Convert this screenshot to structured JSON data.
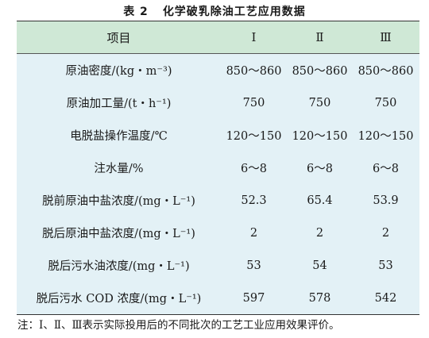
{
  "caption": {
    "number": "表 2",
    "title": "化学破乳除油工艺应用数据"
  },
  "table": {
    "headers": [
      "项目",
      "Ⅰ",
      "Ⅱ",
      "Ⅲ"
    ],
    "rows": [
      [
        "原油密度/(kg・m⁻³)",
        "850～860",
        "850～860",
        "850～860"
      ],
      [
        "原油加工量/(t・h⁻¹)",
        "750",
        "750",
        "750"
      ],
      [
        "电脱盐操作温度/℃",
        "120～150",
        "120～150",
        "120～150"
      ],
      [
        "注水量/%",
        "6～8",
        "6～8",
        "6～8"
      ],
      [
        "脱前原油中盐浓度/(mg・L⁻¹)",
        "52.3",
        "65.4",
        "53.9"
      ],
      [
        "脱后原油中盐浓度/(mg・L⁻¹)",
        "2",
        "2",
        "2"
      ],
      [
        "脱后污水油浓度/(mg・L⁻¹)",
        "53",
        "54",
        "53"
      ],
      [
        "脱后污水 COD 浓度/(mg・L⁻¹)",
        "597",
        "578",
        "542"
      ]
    ]
  },
  "note": "注：Ⅰ、Ⅱ、Ⅲ表示实际投用后的不同批次的工艺工业应用效果评价。"
}
